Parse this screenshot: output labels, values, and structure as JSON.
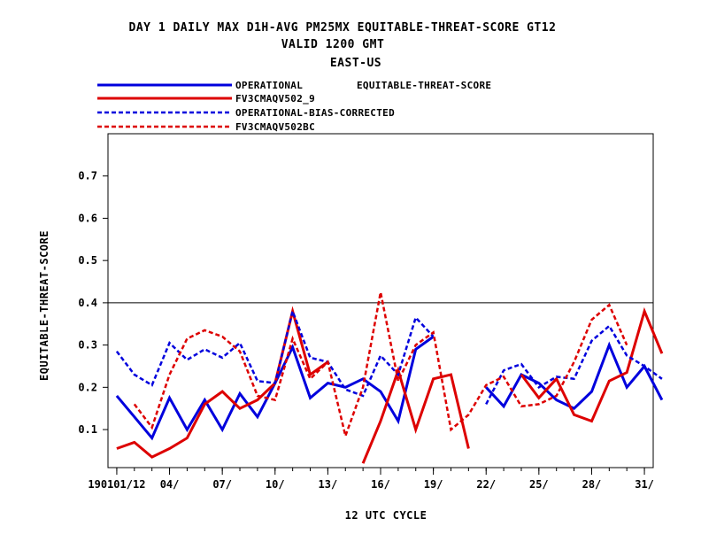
{
  "chart_data": {
    "type": "line",
    "title_lines": [
      "DAY 1 DAILY MAX   D1H-AVG PM25MX EQUITABLE-THREAT-SCORE GT12",
      "VALID 1200 GMT",
      "EAST-US"
    ],
    "legend_note": "EQUITABLE-THREAT-SCORE",
    "xlabel": "12 UTC CYCLE",
    "ylabel": "EQUITABLE-THREAT-SCORE",
    "x_tick_labels": [
      {
        "day": 1,
        "label": "190101/12"
      },
      {
        "day": 4,
        "label": "04/"
      },
      {
        "day": 7,
        "label": "07/"
      },
      {
        "day": 10,
        "label": "10/"
      },
      {
        "day": 13,
        "label": "13/"
      },
      {
        "day": 16,
        "label": "16/"
      },
      {
        "day": 19,
        "label": "19/"
      },
      {
        "day": 22,
        "label": "22/"
      },
      {
        "day": 25,
        "label": "25/"
      },
      {
        "day": 28,
        "label": "28/"
      },
      {
        "day": 31,
        "label": "31/"
      }
    ],
    "y_ticks": [
      0.1,
      0.2,
      0.3,
      0.4,
      0.5,
      0.6,
      0.7
    ],
    "y_tick_labels": [
      "0.1",
      "0.2",
      "0.3",
      "0.4",
      "0.5",
      "0.6",
      "0.7"
    ],
    "xlim": [
      0.5,
      31.5
    ],
    "ylim": [
      0.01,
      0.8
    ],
    "reference_line": 0.4,
    "grid": false,
    "legend_position": "top-left",
    "series": [
      {
        "name": "OPERATIONAL",
        "color": "#0000dd",
        "dash": "solid",
        "values": [
          0.18,
          0.13,
          0.08,
          0.175,
          0.1,
          0.17,
          0.1,
          0.185,
          0.13,
          0.21,
          0.295,
          0.175,
          0.21,
          0.2,
          0.22,
          0.19,
          0.12,
          0.29,
          0.32,
          null,
          null,
          0.2,
          0.155,
          0.23,
          0.21,
          0.17,
          0.15,
          0.19,
          0.3,
          0.2,
          0.25,
          0.17
        ]
      },
      {
        "name": "FV3CMAQV502_9",
        "color": "#dd0000",
        "dash": "solid",
        "values": [
          0.055,
          0.07,
          0.035,
          0.055,
          0.08,
          0.16,
          0.19,
          0.15,
          0.17,
          0.21,
          0.38,
          0.23,
          0.26,
          null,
          0.02,
          0.12,
          0.24,
          0.1,
          0.22,
          0.23,
          0.055,
          null,
          null,
          0.23,
          0.175,
          0.22,
          0.135,
          0.12,
          0.215,
          0.235,
          0.38,
          0.28
        ]
      },
      {
        "name": "OPERATIONAL-BIAS-CORRECTED",
        "color": "#0000dd",
        "dash": "dashed",
        "values": [
          0.285,
          0.23,
          0.205,
          0.305,
          0.265,
          0.29,
          0.27,
          0.305,
          0.215,
          0.21,
          0.38,
          0.27,
          0.26,
          0.195,
          0.18,
          0.275,
          0.23,
          0.365,
          0.32,
          null,
          null,
          0.16,
          0.24,
          0.255,
          0.2,
          0.225,
          0.22,
          0.31,
          0.345,
          0.275,
          0.25,
          0.22
        ]
      },
      {
        "name": "FV3CMAQV502BC",
        "color": "#dd0000",
        "dash": "dashed",
        "values": [
          null,
          0.16,
          0.105,
          0.23,
          0.315,
          0.335,
          0.32,
          0.285,
          0.18,
          0.17,
          0.315,
          0.22,
          0.26,
          0.085,
          0.2,
          0.425,
          0.215,
          0.3,
          0.33,
          0.1,
          0.135,
          0.205,
          0.225,
          0.155,
          0.16,
          0.18,
          0.26,
          0.36,
          0.395,
          0.3
        ]
      }
    ]
  }
}
